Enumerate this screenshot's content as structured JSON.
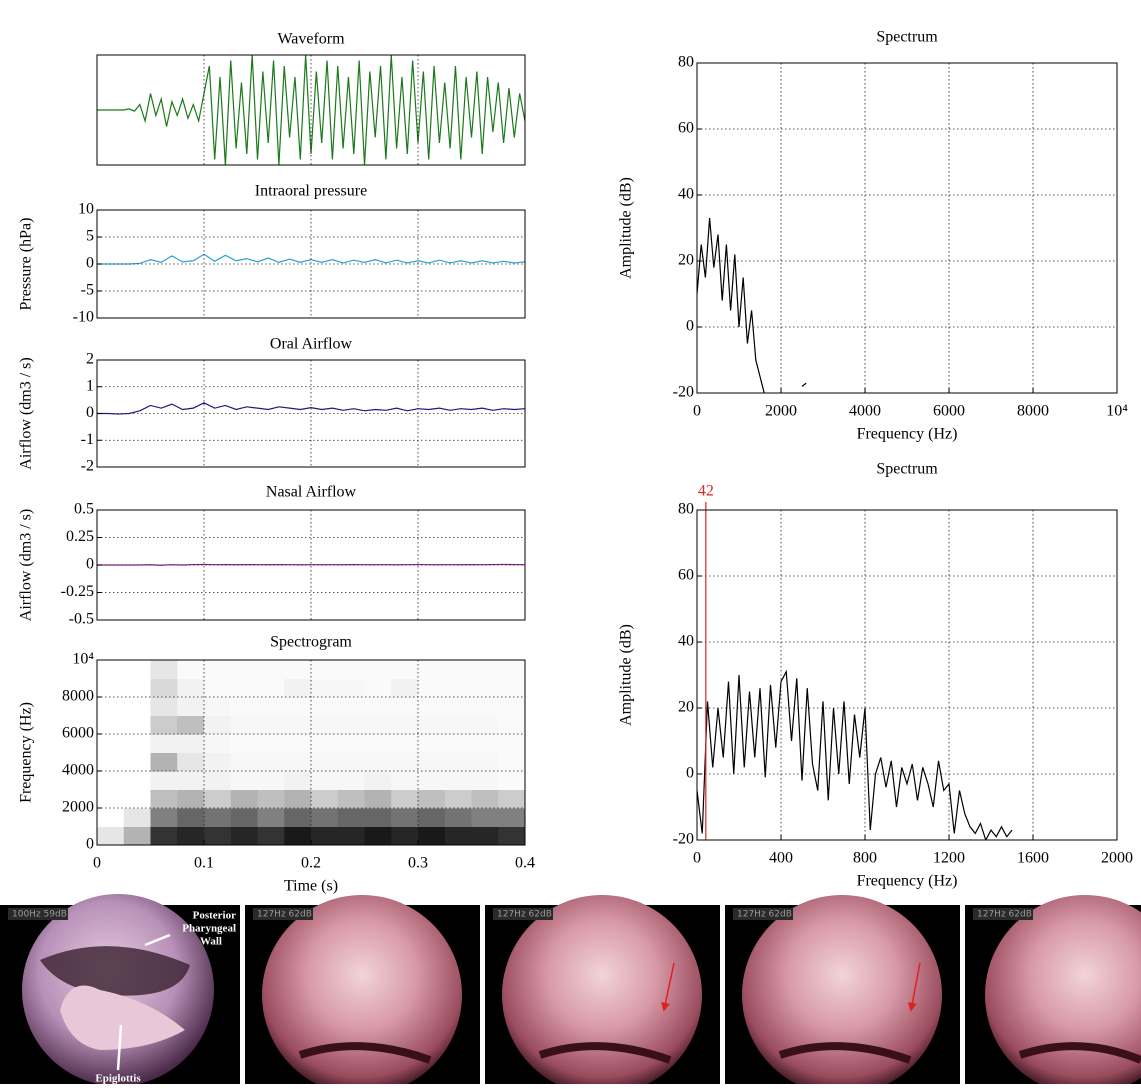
{
  "chart_data": [
    {
      "type": "line",
      "title": "Waveform",
      "color": "#1a7a1a",
      "xlim": [
        0,
        0.4
      ],
      "xticks": [
        0,
        0.1,
        0.2,
        0.3,
        0.4
      ],
      "show_xtick_labels": false,
      "grid": true,
      "x": [
        0,
        0.005,
        0.01,
        0.015,
        0.02,
        0.025,
        0.03,
        0.035,
        0.04,
        0.045,
        0.05,
        0.055,
        0.06,
        0.065,
        0.07,
        0.075,
        0.08,
        0.085,
        0.09,
        0.095,
        0.1,
        0.105,
        0.11,
        0.115,
        0.12,
        0.125,
        0.13,
        0.135,
        0.14,
        0.145,
        0.15,
        0.155,
        0.16,
        0.165,
        0.17,
        0.175,
        0.18,
        0.185,
        0.19,
        0.195,
        0.2,
        0.205,
        0.21,
        0.215,
        0.22,
        0.225,
        0.23,
        0.235,
        0.24,
        0.245,
        0.25,
        0.255,
        0.26,
        0.265,
        0.27,
        0.275,
        0.28,
        0.285,
        0.29,
        0.295,
        0.3,
        0.305,
        0.31,
        0.315,
        0.32,
        0.325,
        0.33,
        0.335,
        0.34,
        0.345,
        0.35,
        0.355,
        0.36,
        0.365,
        0.37,
        0.375,
        0.38,
        0.385,
        0.39,
        0.395,
        0.4
      ],
      "values": [
        0,
        0,
        0,
        0,
        0,
        0,
        0.02,
        -0.02,
        0.1,
        -0.2,
        0.3,
        -0.1,
        0.2,
        -0.3,
        0.15,
        -0.1,
        0.2,
        -0.15,
        0.1,
        -0.2,
        0.3,
        0.8,
        -0.9,
        0.6,
        -1.0,
        0.9,
        -0.7,
        0.5,
        -0.8,
        1.0,
        -0.9,
        0.7,
        -0.6,
        0.9,
        -1.0,
        0.8,
        -0.5,
        0.6,
        -0.9,
        1.0,
        -0.8,
        0.7,
        -0.6,
        0.9,
        -0.9,
        0.8,
        -0.7,
        0.6,
        -0.8,
        0.9,
        -1.0,
        0.7,
        -0.5,
        0.8,
        -0.9,
        1.0,
        -0.7,
        0.6,
        -0.8,
        0.9,
        -0.6,
        0.7,
        -0.9,
        0.8,
        -0.6,
        0.5,
        -0.7,
        0.8,
        -0.9,
        0.6,
        -0.5,
        0.7,
        -0.8,
        0.6,
        -0.4,
        0.5,
        -0.6,
        0.4,
        -0.5,
        0.3,
        -0.2
      ]
    },
    {
      "type": "line",
      "title": "Intraoral pressure",
      "ylabel": "Pressure (hPa)",
      "color": "#29a3d6",
      "xlim": [
        0,
        0.4
      ],
      "xticks": [
        0,
        0.1,
        0.2,
        0.3,
        0.4
      ],
      "show_xtick_labels": false,
      "ylim": [
        -10,
        10
      ],
      "yticks": [
        -10,
        -5,
        0,
        5,
        10
      ],
      "grid": true,
      "x": [
        0,
        0.01,
        0.02,
        0.03,
        0.04,
        0.05,
        0.06,
        0.07,
        0.08,
        0.09,
        0.1,
        0.11,
        0.12,
        0.13,
        0.14,
        0.15,
        0.16,
        0.17,
        0.18,
        0.19,
        0.2,
        0.21,
        0.22,
        0.23,
        0.24,
        0.25,
        0.26,
        0.27,
        0.28,
        0.29,
        0.3,
        0.31,
        0.32,
        0.33,
        0.34,
        0.35,
        0.36,
        0.37,
        0.38,
        0.39,
        0.4
      ],
      "values": [
        0,
        0,
        0,
        0,
        0.1,
        0.8,
        0.3,
        1.5,
        0.4,
        0.6,
        1.8,
        0.5,
        1.6,
        0.6,
        1,
        0.4,
        1.1,
        0.3,
        0.9,
        0.3,
        0.8,
        0.3,
        0.8,
        0.2,
        0.7,
        0.3,
        0.8,
        0.2,
        0.7,
        0.2,
        0.6,
        0.2,
        0.7,
        0.2,
        0.6,
        0.2,
        0.6,
        0.2,
        0.5,
        0.2,
        0.4
      ]
    },
    {
      "type": "line",
      "title": "Oral Airflow",
      "ylabel": "Airflow (dm3 / s)",
      "color": "#1a1a80",
      "xlim": [
        0,
        0.4
      ],
      "xticks": [
        0,
        0.1,
        0.2,
        0.3,
        0.4
      ],
      "show_xtick_labels": false,
      "ylim": [
        -2,
        2
      ],
      "yticks": [
        -2,
        -1,
        0,
        1,
        2
      ],
      "grid": true,
      "x": [
        0,
        0.01,
        0.02,
        0.03,
        0.04,
        0.05,
        0.06,
        0.07,
        0.08,
        0.09,
        0.1,
        0.11,
        0.12,
        0.13,
        0.14,
        0.15,
        0.16,
        0.17,
        0.18,
        0.19,
        0.2,
        0.21,
        0.22,
        0.23,
        0.24,
        0.25,
        0.26,
        0.27,
        0.28,
        0.29,
        0.3,
        0.31,
        0.32,
        0.33,
        0.34,
        0.35,
        0.36,
        0.37,
        0.38,
        0.39,
        0.4
      ],
      "values": [
        0,
        0,
        -0.02,
        0,
        0.1,
        0.3,
        0.2,
        0.35,
        0.15,
        0.2,
        0.4,
        0.2,
        0.3,
        0.15,
        0.25,
        0.2,
        0.15,
        0.25,
        0.2,
        0.15,
        0.22,
        0.15,
        0.2,
        0.12,
        0.18,
        0.1,
        0.15,
        0.12,
        0.2,
        0.1,
        0.18,
        0.15,
        0.2,
        0.12,
        0.18,
        0.15,
        0.2,
        0.12,
        0.18,
        0.15,
        0.18
      ]
    },
    {
      "type": "line",
      "title": "Nasal Airflow",
      "ylabel": "Airflow (dm3 / s)",
      "color": "#8b1a8b",
      "xlim": [
        0,
        0.4
      ],
      "xticks": [
        0,
        0.1,
        0.2,
        0.3,
        0.4
      ],
      "show_xtick_labels": false,
      "ylim": [
        -0.5,
        0.5
      ],
      "yticks": [
        -0.5,
        -0.25,
        0,
        0.25,
        0.5
      ],
      "grid": true,
      "x": [
        0,
        0.01,
        0.02,
        0.03,
        0.04,
        0.05,
        0.06,
        0.07,
        0.08,
        0.09,
        0.1,
        0.11,
        0.12,
        0.13,
        0.14,
        0.15,
        0.16,
        0.17,
        0.18,
        0.19,
        0.2,
        0.21,
        0.22,
        0.23,
        0.24,
        0.25,
        0.26,
        0.27,
        0.28,
        0.29,
        0.3,
        0.31,
        0.32,
        0.33,
        0.34,
        0.35,
        0.36,
        0.37,
        0.38,
        0.39,
        0.4
      ],
      "values": [
        0,
        0,
        0,
        0,
        0,
        0.002,
        -0.002,
        0.003,
        0,
        0.004,
        0.005,
        0.003,
        0.004,
        0.002,
        0.004,
        0.003,
        0.002,
        0.004,
        0.003,
        0.002,
        0.003,
        0.002,
        0.003,
        0.002,
        0.004,
        0.003,
        0.002,
        0.003,
        0.002,
        0.003,
        0.004,
        0.003,
        0.002,
        0.003,
        0.002,
        0.004,
        0.003,
        0.004,
        0.005,
        0.004,
        0.003
      ]
    },
    {
      "type": "heatmap",
      "title": "Spectrogram",
      "xlabel": "Time (s)",
      "ylabel": "Frequency (Hz)",
      "xlim": [
        0,
        0.4
      ],
      "xticks": [
        0,
        0.1,
        0.2,
        0.3,
        0.4
      ],
      "show_xtick_labels": true,
      "ylim": [
        0,
        10000
      ],
      "yticks": [
        0,
        2000,
        4000,
        6000,
        8000,
        {
          "value": 10000,
          "label": "10⁴"
        }
      ],
      "grid": true,
      "x": [
        0,
        0.025,
        0.05,
        0.075,
        0.1,
        0.125,
        0.15,
        0.175,
        0.2,
        0.225,
        0.25,
        0.275,
        0.3,
        0.325,
        0.35,
        0.375,
        0.4
      ],
      "y": [
        0,
        1000,
        2000,
        3000,
        4000,
        5000,
        6000,
        7000,
        8000,
        9000,
        10000
      ],
      "z": [
        [
          0.1,
          0.3,
          0.8,
          0.85,
          0.8,
          0.85,
          0.8,
          0.9,
          0.85,
          0.85,
          0.9,
          0.85,
          0.9,
          0.85,
          0.85,
          0.8
        ],
        [
          0,
          0.1,
          0.5,
          0.6,
          0.55,
          0.6,
          0.5,
          0.6,
          0.55,
          0.6,
          0.6,
          0.55,
          0.6,
          0.55,
          0.5,
          0.5
        ],
        [
          0,
          0,
          0.25,
          0.3,
          0.2,
          0.3,
          0.25,
          0.3,
          0.2,
          0.25,
          0.3,
          0.2,
          0.25,
          0.2,
          0.25,
          0.2
        ],
        [
          0,
          0,
          0.05,
          0.05,
          0.05,
          0.03,
          0.03,
          0.05,
          0.03,
          0.03,
          0.05,
          0.03,
          0.03,
          0.03,
          0.03,
          0.02
        ],
        [
          0,
          0,
          0.3,
          0.1,
          0.05,
          0.03,
          0.03,
          0.03,
          0.03,
          0.03,
          0.03,
          0.03,
          0.03,
          0.03,
          0.03,
          0.02
        ],
        [
          0,
          0,
          0.05,
          0.05,
          0.03,
          0.02,
          0.02,
          0.02,
          0.02,
          0.02,
          0.02,
          0.02,
          0.02,
          0.02,
          0.02,
          0.02
        ],
        [
          0,
          0,
          0.2,
          0.25,
          0.05,
          0.03,
          0.03,
          0.03,
          0.03,
          0.03,
          0.03,
          0.03,
          0.03,
          0.03,
          0.03,
          0.02
        ],
        [
          0,
          0,
          0.1,
          0.05,
          0.03,
          0.02,
          0.02,
          0.02,
          0.02,
          0.02,
          0.02,
          0.02,
          0.02,
          0.02,
          0.02,
          0.02
        ],
        [
          0,
          0,
          0.15,
          0.05,
          0.02,
          0.02,
          0.02,
          0.05,
          0.03,
          0.03,
          0.02,
          0.05,
          0.02,
          0.02,
          0.02,
          0.02
        ],
        [
          0,
          0,
          0.1,
          0.02,
          0.02,
          0.02,
          0.02,
          0.02,
          0.02,
          0.02,
          0.02,
          0.02,
          0.02,
          0.02,
          0.02,
          0.02
        ]
      ]
    },
    {
      "type": "line",
      "title": "Spectrum",
      "xlabel": "Frequency (Hz)",
      "ylabel": "Amplitude (dB)",
      "color": "#000000",
      "xlim": [
        0,
        10000
      ],
      "xticks": [
        0,
        2000,
        4000,
        6000,
        8000,
        {
          "value": 10000,
          "label": "10⁴"
        }
      ],
      "show_xtick_labels": true,
      "ylim": [
        -20,
        80
      ],
      "yticks": [
        -20,
        0,
        20,
        40,
        60,
        80
      ],
      "grid": true,
      "x": [
        0,
        100,
        200,
        300,
        400,
        500,
        600,
        700,
        800,
        900,
        1000,
        1100,
        1200,
        1300,
        1400,
        1500,
        1600,
        1700,
        1800,
        1900,
        2000,
        2100,
        2200,
        2300,
        2400,
        2500,
        2600
      ],
      "values": [
        10,
        25,
        15,
        33,
        18,
        28,
        8,
        25,
        5,
        22,
        0,
        15,
        -5,
        5,
        -10,
        -15,
        -20,
        null,
        null,
        null,
        null,
        null,
        null,
        null,
        null,
        -18,
        -17
      ]
    },
    {
      "type": "line",
      "title": "Spectrum",
      "xlabel": "Frequency (Hz)",
      "ylabel": "Amplitude (dB)",
      "color": "#000000",
      "xlim": [
        0,
        2000
      ],
      "xticks": [
        0,
        400,
        800,
        1200,
        1600,
        2000
      ],
      "show_xtick_labels": true,
      "ylim": [
        -20,
        80
      ],
      "yticks": [
        -20,
        0,
        20,
        40,
        60,
        80
      ],
      "grid": true,
      "marker": 42,
      "marker_color": "#d62728",
      "x": [
        0,
        25,
        50,
        75,
        100,
        125,
        150,
        175,
        200,
        225,
        250,
        275,
        300,
        325,
        350,
        375,
        400,
        425,
        450,
        475,
        500,
        525,
        550,
        575,
        600,
        625,
        650,
        675,
        700,
        725,
        750,
        775,
        800,
        825,
        850,
        875,
        900,
        925,
        950,
        975,
        1000,
        1025,
        1050,
        1075,
        1100,
        1125,
        1150,
        1175,
        1200,
        1225,
        1250,
        1275,
        1300,
        1325,
        1350,
        1375,
        1400,
        1425,
        1450,
        1475,
        1500
      ],
      "values": [
        -5,
        -18,
        22,
        2,
        20,
        5,
        28,
        0,
        30,
        2,
        25,
        5,
        26,
        -1,
        27,
        8,
        28,
        31,
        10,
        29,
        -2,
        26,
        3,
        -5,
        22,
        -8,
        20,
        0,
        22,
        -3,
        18,
        5,
        20,
        -17,
        0,
        5,
        -4,
        4,
        -10,
        2,
        -3,
        3,
        -8,
        2,
        -3,
        -10,
        4,
        -5,
        -3,
        -18,
        -5,
        -12,
        -16,
        -18,
        -15,
        -20,
        -17,
        -19,
        -16,
        -19,
        -17
      ]
    }
  ],
  "photos": [
    {
      "caption": "100Hz 59dB",
      "labels": [
        "Posterior",
        "Pharyngeal",
        "Wall",
        "Epiglottis"
      ]
    },
    {
      "caption": "127Hz 62dB"
    },
    {
      "caption": "127Hz 62dB"
    },
    {
      "caption": "127Hz 62dB"
    },
    {
      "caption": "127Hz 62dB"
    }
  ]
}
